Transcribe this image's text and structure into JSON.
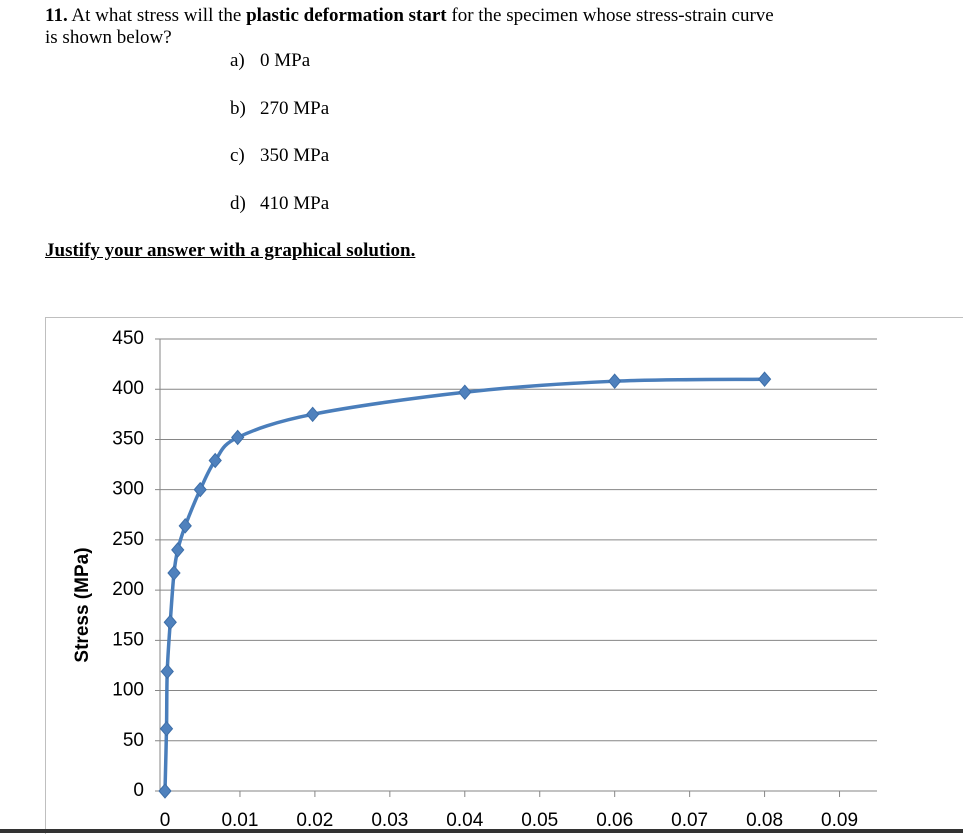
{
  "question": {
    "number": "11.",
    "text_before": "At what stress will the",
    "bold": "plastic deformation start",
    "text_after": "for the specimen whose stress-strain curve",
    "text_line2": "is shown below?"
  },
  "options": [
    {
      "letter": "a)",
      "text": "0 MPa"
    },
    {
      "letter": "b)",
      "text": "270 MPa"
    },
    {
      "letter": "c)",
      "text": "350 MPa"
    },
    {
      "letter": "d)",
      "text": "410 MPa"
    }
  ],
  "instruction": "Justify your answer with a graphical solution.",
  "chart_data": {
    "type": "line",
    "y_label": "Stress (MPa)",
    "x": [
      0,
      0.0002,
      0.0003,
      0.0007,
      0.0012,
      0.0017,
      0.0027,
      0.0047,
      0.0067,
      0.0097,
      0.0197,
      0.04,
      0.06,
      0.08
    ],
    "series": [
      {
        "color": "#4a7ebb",
        "values": [
          0,
          62,
          119,
          168,
          217,
          240,
          264,
          300,
          329,
          352,
          375,
          397,
          408,
          410
        ]
      }
    ],
    "xlim": [
      0,
      0.095
    ],
    "xticks": [
      0,
      0.01,
      0.02,
      0.03,
      0.04,
      0.05,
      0.06,
      0.07,
      0.08,
      0.09
    ],
    "ylim": [
      0,
      450
    ],
    "yticks": [
      0,
      50,
      100,
      150,
      200,
      250,
      300,
      350,
      400,
      450
    ],
    "grid": true
  }
}
